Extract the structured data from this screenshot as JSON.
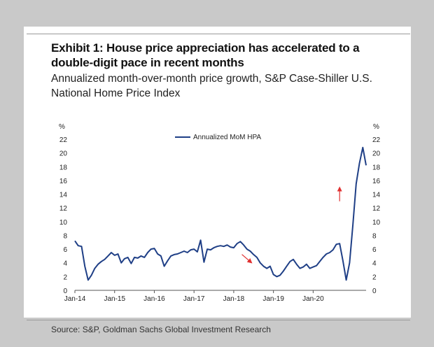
{
  "page": {
    "title": "Exhibit 1: House price appreciation has accelerated to a\ndouble-digit pace in recent months",
    "subtitle": "Annualized month-over-month price growth, S&P Case-Shiller U.S.\nNational Home Price Index",
    "source": "Source: S&P, Goldman Sachs Global Investment Research"
  },
  "colors": {
    "line": "#1f3f86",
    "arrow": "#e03030",
    "axis": "#555555",
    "text": "#222222"
  },
  "chart_data": {
    "type": "line",
    "title": "",
    "xlabel": "",
    "ylabel_left": "%",
    "ylabel_right": "%",
    "ylim": [
      0,
      22
    ],
    "yticks": [
      0,
      2,
      4,
      6,
      8,
      10,
      12,
      14,
      16,
      18,
      20,
      22
    ],
    "xtick_labels": [
      "Jan-14",
      "Jan-15",
      "Jan-16",
      "Jan-17",
      "Jan-18",
      "Jan-19",
      "Jan-20"
    ],
    "legend": "top-center",
    "grid": false,
    "series": [
      {
        "name": "Annualized MoM HPA",
        "start": "Jan-14",
        "frequency": "monthly",
        "values": [
          7.2,
          6.5,
          6.4,
          3.5,
          1.5,
          2.2,
          3.2,
          3.8,
          4.2,
          4.5,
          5.0,
          5.5,
          5.1,
          5.3,
          4.0,
          4.6,
          4.8,
          3.9,
          4.8,
          4.7,
          5.0,
          4.8,
          5.5,
          6.0,
          6.1,
          5.3,
          5.0,
          3.5,
          4.3,
          5.0,
          5.2,
          5.3,
          5.5,
          5.7,
          5.5,
          5.9,
          6.0,
          5.6,
          7.3,
          4.1,
          6.0,
          5.9,
          6.2,
          6.4,
          6.5,
          6.4,
          6.6,
          6.3,
          6.2,
          6.8,
          7.1,
          6.6,
          6.0,
          5.7,
          5.2,
          4.8,
          4.0,
          3.5,
          3.2,
          3.5,
          2.3,
          2.0,
          2.2,
          2.8,
          3.5,
          4.2,
          4.5,
          3.8,
          3.2,
          3.4,
          3.8,
          3.2,
          3.4,
          3.6,
          4.2,
          4.8,
          5.3,
          5.5,
          5.9,
          6.7,
          6.8,
          4.3,
          1.5,
          4.0,
          9.5,
          15.5,
          18.5,
          20.8,
          18.2
        ]
      }
    ],
    "annotations": [
      {
        "type": "arrow",
        "direction": "down-right",
        "near": "Jun-18",
        "value": 3.8
      },
      {
        "type": "arrow",
        "direction": "up",
        "near": "Sep-20",
        "value": 15.0
      }
    ]
  }
}
